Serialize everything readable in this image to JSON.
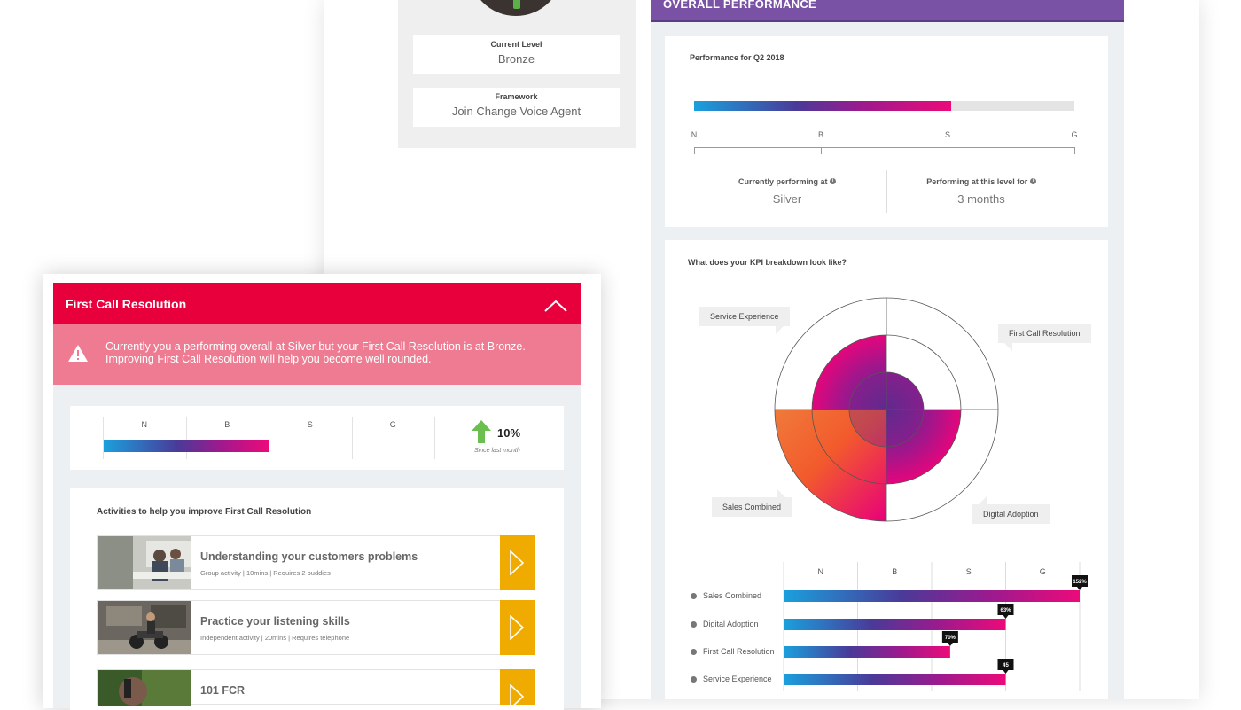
{
  "profile": {
    "current_level_label": "Current Level",
    "current_level_value": "Bronze",
    "framework_label": "Framework",
    "framework_value": "Join Change Voice Agent"
  },
  "overall": {
    "header": "OVERALL PERFORMANCE",
    "title": "Performance for Q2 2018",
    "scale": [
      "N",
      "B",
      "S",
      "G"
    ],
    "progress_fraction": 0.675,
    "currently_label": "Currently performing at",
    "currently_value": "Silver",
    "duration_label": "Performing at this level for",
    "duration_value": "3 months"
  },
  "kpi": {
    "title": "What does your KPI breakdown look like?",
    "quadrant_labels": {
      "top_left": "Service Experience",
      "top_right": "First Call Resolution",
      "bottom_left": "Sales Combined",
      "bottom_right": "Digital Adoption"
    },
    "quadrant_levels": {
      "top_left": 2,
      "top_right": 1,
      "bottom_left": 3,
      "bottom_right": 2
    },
    "bar_scale": [
      "N",
      "B",
      "S",
      "G"
    ],
    "bars": [
      {
        "label": "Sales Combined",
        "value": 152,
        "badge": "152%"
      },
      {
        "label": "Digital Adoption",
        "value": 100,
        "badge": "63%"
      },
      {
        "label": "First Call Resolution",
        "value": 75,
        "badge": "70%"
      },
      {
        "label": "Service Experience",
        "value": 100,
        "badge": "45"
      }
    ]
  },
  "fcr": {
    "title": "First Call Resolution",
    "alert_line1": "Currently you a performing overall at Silver but your First Call Resolution is at Bronze.",
    "alert_line2": "Improving First Call Resolution will help you become well rounded.",
    "levels": [
      "N",
      "B",
      "S",
      "G"
    ],
    "trend_value": "10%",
    "trend_caption": "Since last month",
    "colors": {
      "header": "#e8003d",
      "alert": "#ee7b91",
      "action": "#f0ab00",
      "trend": "#6bbf4e"
    }
  },
  "activities": {
    "title": "Activities to help you improve First Call Resolution",
    "items": [
      {
        "title": "Understanding your customers problems",
        "meta": "Group activity  |  10mins  |  Requires 2 buddies"
      },
      {
        "title": "Practice your listening skills",
        "meta": "Independent activity  |  20mins  |  Requires telephone"
      },
      {
        "title": "101 FCR",
        "meta": ""
      }
    ]
  }
}
